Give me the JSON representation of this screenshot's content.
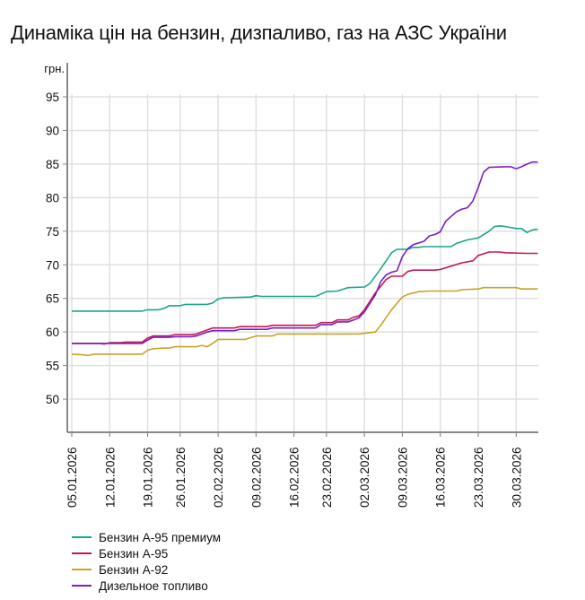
{
  "title": "Динаміка цін на бензин, дизпаливо, газ на АЗС України",
  "chart_data": {
    "type": "line",
    "title": "Динаміка цін на бензин, дизпаливо, газ на АЗС України",
    "xlabel": "",
    "ylabel": "грн.",
    "ylim": [
      45,
      97
    ],
    "yticks": [
      50,
      55,
      60,
      65,
      70,
      75,
      80,
      85,
      90,
      95
    ],
    "grid": true,
    "legend_position": "bottom-left",
    "x_tick_labels": [
      "05.01.2026",
      "12.01.2026",
      "19.01.2026",
      "26.01.2026",
      "02.02.2026",
      "09.02.2026",
      "16.02.2026",
      "23.02.2026",
      "02.03.2026",
      "09.03.2026",
      "16.03.2026",
      "23.03.2026",
      "30.03.2026"
    ],
    "x_tick_days": [
      0,
      7,
      14,
      20,
      27,
      34,
      41,
      47,
      54,
      61,
      68,
      75,
      82
    ],
    "x_range_days": [
      0,
      86
    ],
    "series": [
      {
        "name": "Бензин А-95 преміум",
        "color": "#1aa68a",
        "points": [
          [
            0,
            63.1
          ],
          [
            6,
            63.1
          ],
          [
            13,
            63.1
          ],
          [
            14,
            63.3
          ],
          [
            16,
            63.3
          ],
          [
            17,
            63.5
          ],
          [
            18,
            63.9
          ],
          [
            20,
            63.9
          ],
          [
            21,
            64.1
          ],
          [
            25,
            64.1
          ],
          [
            26,
            64.3
          ],
          [
            27,
            64.9
          ],
          [
            28,
            65.1
          ],
          [
            33,
            65.2
          ],
          [
            34,
            65.4
          ],
          [
            35,
            65.3
          ],
          [
            41,
            65.3
          ],
          [
            45,
            65.3
          ],
          [
            47,
            66.0
          ],
          [
            49,
            66.1
          ],
          [
            51,
            66.6
          ],
          [
            54,
            66.7
          ],
          [
            55,
            67.2
          ],
          [
            57,
            69.4
          ],
          [
            59,
            71.8
          ],
          [
            60,
            72.3
          ],
          [
            62,
            72.3
          ],
          [
            63,
            72.6
          ],
          [
            64,
            72.6
          ],
          [
            65,
            72.7
          ],
          [
            70,
            72.7
          ],
          [
            71,
            73.2
          ],
          [
            73,
            73.7
          ],
          [
            75,
            74.0
          ],
          [
            77,
            75.0
          ],
          [
            78,
            75.7
          ],
          [
            79,
            75.8
          ],
          [
            80,
            75.7
          ],
          [
            82,
            75.4
          ],
          [
            83,
            75.4
          ],
          [
            84,
            74.8
          ],
          [
            85,
            75.2
          ],
          [
            86,
            75.3
          ]
        ]
      },
      {
        "name": "Бензин А-95",
        "color": "#c2185b",
        "points": [
          [
            0,
            58.3
          ],
          [
            5,
            58.3
          ],
          [
            6,
            58.2
          ],
          [
            7,
            58.4
          ],
          [
            9,
            58.4
          ],
          [
            10,
            58.5
          ],
          [
            13,
            58.5
          ],
          [
            14,
            59.1
          ],
          [
            15,
            59.4
          ],
          [
            18,
            59.4
          ],
          [
            19,
            59.6
          ],
          [
            22,
            59.6
          ],
          [
            23,
            59.7
          ],
          [
            25,
            60.3
          ],
          [
            26,
            60.6
          ],
          [
            30,
            60.6
          ],
          [
            31,
            60.8
          ],
          [
            36,
            60.8
          ],
          [
            37,
            61.0
          ],
          [
            45,
            61.0
          ],
          [
            46,
            61.4
          ],
          [
            48,
            61.4
          ],
          [
            49,
            61.8
          ],
          [
            51,
            61.8
          ],
          [
            52,
            62.2
          ],
          [
            53,
            62.4
          ],
          [
            54,
            63.3
          ],
          [
            56,
            65.8
          ],
          [
            58,
            67.8
          ],
          [
            59,
            68.3
          ],
          [
            61,
            68.3
          ],
          [
            62,
            69.0
          ],
          [
            63,
            69.2
          ],
          [
            67,
            69.2
          ],
          [
            68,
            69.3
          ],
          [
            70,
            69.8
          ],
          [
            72,
            70.3
          ],
          [
            74,
            70.6
          ],
          [
            75,
            71.4
          ],
          [
            77,
            71.9
          ],
          [
            78,
            71.9
          ],
          [
            79,
            71.9
          ],
          [
            80,
            71.8
          ],
          [
            84,
            71.7
          ],
          [
            86,
            71.7
          ]
        ]
      },
      {
        "name": "Бензин А-92",
        "color": "#c9a227",
        "points": [
          [
            0,
            56.7
          ],
          [
            2,
            56.6
          ],
          [
            3,
            56.5
          ],
          [
            4,
            56.7
          ],
          [
            8,
            56.7
          ],
          [
            13,
            56.7
          ],
          [
            14,
            57.3
          ],
          [
            15,
            57.5
          ],
          [
            17,
            57.6
          ],
          [
            18,
            57.6
          ],
          [
            19,
            57.8
          ],
          [
            23,
            57.8
          ],
          [
            24,
            58.0
          ],
          [
            25,
            57.8
          ],
          [
            26,
            58.3
          ],
          [
            27,
            58.9
          ],
          [
            32,
            58.9
          ],
          [
            34,
            59.4
          ],
          [
            37,
            59.4
          ],
          [
            38,
            59.7
          ],
          [
            44,
            59.7
          ],
          [
            53,
            59.7
          ],
          [
            54,
            59.8
          ],
          [
            55,
            59.9
          ],
          [
            56,
            60.0
          ],
          [
            57,
            61.0
          ],
          [
            59,
            63.3
          ],
          [
            61,
            65.2
          ],
          [
            62,
            65.6
          ],
          [
            64,
            66.0
          ],
          [
            66,
            66.1
          ],
          [
            71,
            66.1
          ],
          [
            72,
            66.3
          ],
          [
            75,
            66.4
          ],
          [
            76,
            66.6
          ],
          [
            80,
            66.6
          ],
          [
            82,
            66.6
          ],
          [
            83,
            66.4
          ],
          [
            86,
            66.4
          ]
        ]
      },
      {
        "name": "Дизельное топливо",
        "color": "#7b1fc2",
        "points": [
          [
            0,
            58.3
          ],
          [
            6,
            58.3
          ],
          [
            8,
            58.3
          ],
          [
            13,
            58.3
          ],
          [
            14,
            58.8
          ],
          [
            15,
            59.2
          ],
          [
            18,
            59.2
          ],
          [
            19,
            59.3
          ],
          [
            22,
            59.3
          ],
          [
            23,
            59.4
          ],
          [
            25,
            60.0
          ],
          [
            26,
            60.2
          ],
          [
            30,
            60.2
          ],
          [
            31,
            60.4
          ],
          [
            36,
            60.4
          ],
          [
            37,
            60.6
          ],
          [
            45,
            60.6
          ],
          [
            46,
            61.1
          ],
          [
            48,
            61.1
          ],
          [
            49,
            61.5
          ],
          [
            51,
            61.5
          ],
          [
            52,
            61.8
          ],
          [
            53,
            62.1
          ],
          [
            54,
            63.0
          ],
          [
            56,
            65.5
          ],
          [
            57,
            67.5
          ],
          [
            58,
            68.5
          ],
          [
            59,
            68.9
          ],
          [
            60,
            69.1
          ],
          [
            61,
            71.2
          ],
          [
            62,
            72.4
          ],
          [
            63,
            73.0
          ],
          [
            65,
            73.5
          ],
          [
            66,
            74.3
          ],
          [
            67,
            74.5
          ],
          [
            68,
            74.9
          ],
          [
            69,
            76.5
          ],
          [
            70,
            77.2
          ],
          [
            71,
            77.9
          ],
          [
            72,
            78.3
          ],
          [
            73,
            78.5
          ],
          [
            74,
            79.5
          ],
          [
            75,
            81.5
          ],
          [
            76,
            83.8
          ],
          [
            77,
            84.5
          ],
          [
            80,
            84.6
          ],
          [
            81,
            84.6
          ],
          [
            82,
            84.3
          ],
          [
            83,
            84.6
          ],
          [
            84,
            85.0
          ],
          [
            85,
            85.3
          ],
          [
            86,
            85.3
          ]
        ]
      }
    ]
  },
  "legend": {
    "items": [
      {
        "label": "Бензин А-95 премиум",
        "color": "#1aa68a"
      },
      {
        "label": "Бензин А-95",
        "color": "#c2185b"
      },
      {
        "label": "Бензин А-92",
        "color": "#c9a227"
      },
      {
        "label": "Дизельное топливо",
        "color": "#7b1fc2"
      }
    ]
  }
}
